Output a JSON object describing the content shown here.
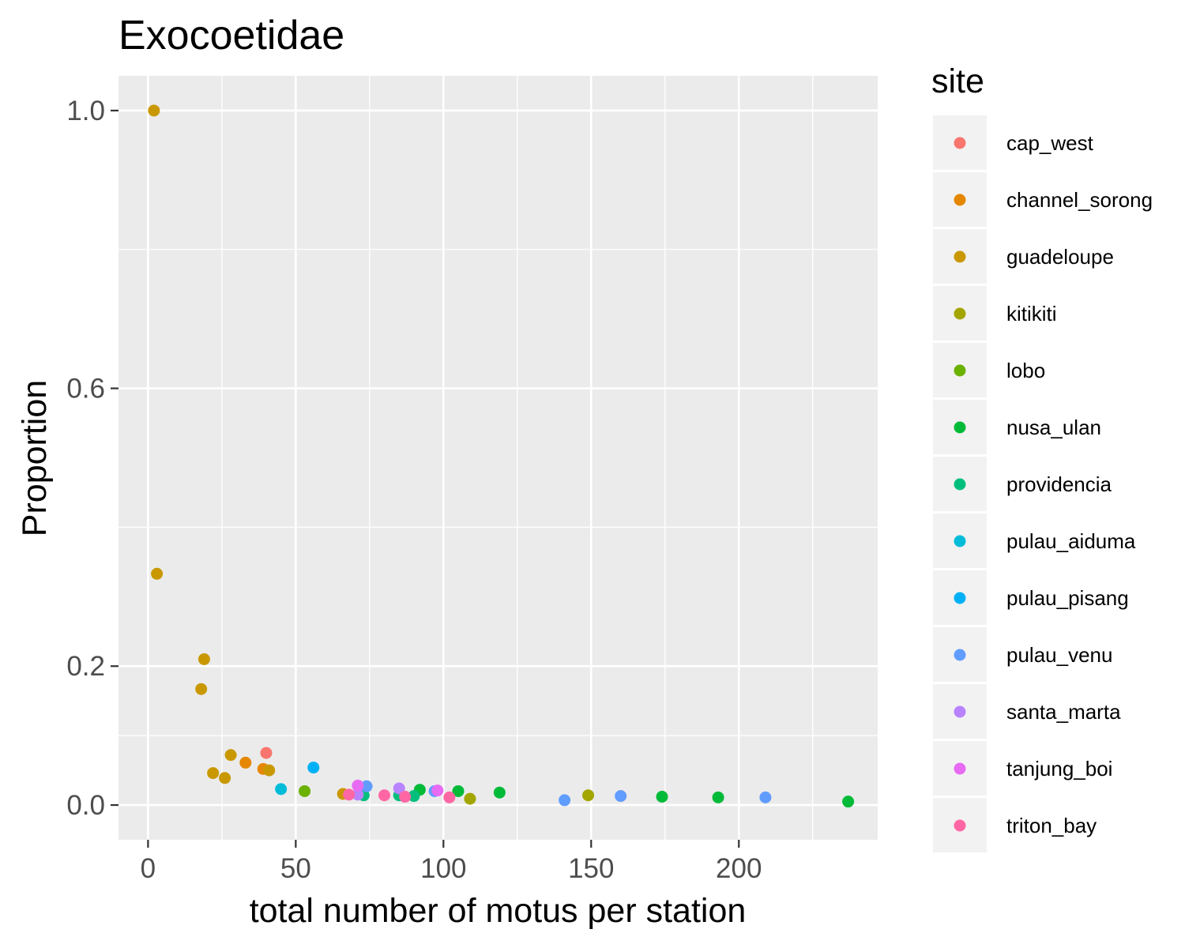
{
  "chart_data": {
    "type": "scatter",
    "title": "Exocoetidae",
    "xlabel": "total number of motus per station",
    "ylabel": "Proportion",
    "xlim": [
      -10,
      247
    ],
    "ylim": [
      -0.05,
      1.05
    ],
    "x_ticks": [
      0,
      50,
      100,
      150,
      200
    ],
    "x_tick_labels": [
      "0",
      "50",
      "100",
      "150",
      "200"
    ],
    "y_ticks": [
      0.0,
      0.2,
      0.6,
      1.0
    ],
    "y_tick_labels": [
      "0.0",
      "0.2",
      "0.6",
      "1.0"
    ],
    "y_minor_ticks": [
      0.1,
      0.4,
      0.8
    ],
    "x_minor_ticks": [
      25,
      75,
      125,
      175,
      225
    ],
    "grid": true,
    "legend_title": "site",
    "legend_position": "right",
    "series": [
      {
        "name": "cap_west",
        "color": "#F8766D",
        "points": [
          [
            40,
            0.075
          ]
        ]
      },
      {
        "name": "channel_sorong",
        "color": "#E58700",
        "points": [
          [
            33,
            0.061
          ],
          [
            39,
            0.052
          ]
        ]
      },
      {
        "name": "guadeloupe",
        "color": "#C99800",
        "points": [
          [
            2,
            1.0
          ],
          [
            3,
            0.333
          ],
          [
            19,
            0.21
          ],
          [
            18,
            0.167
          ],
          [
            28,
            0.072
          ],
          [
            22,
            0.046
          ],
          [
            26,
            0.039
          ],
          [
            41,
            0.05
          ],
          [
            66,
            0.016
          ]
        ]
      },
      {
        "name": "kitikiti",
        "color": "#A3A500",
        "points": [
          [
            109,
            0.009
          ],
          [
            149,
            0.014
          ]
        ]
      },
      {
        "name": "lobo",
        "color": "#6BB100",
        "points": [
          [
            53,
            0.02
          ]
        ]
      },
      {
        "name": "nusa_ulan",
        "color": "#00BA38",
        "points": [
          [
            92,
            0.022
          ],
          [
            105,
            0.02
          ],
          [
            119,
            0.018
          ],
          [
            174,
            0.012
          ],
          [
            193,
            0.011
          ],
          [
            237,
            0.005
          ]
        ]
      },
      {
        "name": "providencia",
        "color": "#00BF7D",
        "points": [
          [
            73,
            0.014
          ],
          [
            85,
            0.014
          ],
          [
            90,
            0.013
          ]
        ]
      },
      {
        "name": "pulau_aiduma",
        "color": "#00BCD8",
        "points": [
          [
            45,
            0.023
          ]
        ]
      },
      {
        "name": "pulau_pisang",
        "color": "#00B0F6",
        "points": [
          [
            56,
            0.054
          ]
        ]
      },
      {
        "name": "pulau_venu",
        "color": "#619CFF",
        "points": [
          [
            74,
            0.027
          ],
          [
            97,
            0.02
          ],
          [
            141,
            0.007
          ],
          [
            160,
            0.013
          ],
          [
            209,
            0.011
          ]
        ]
      },
      {
        "name": "santa_marta",
        "color": "#B983FF",
        "points": [
          [
            71,
            0.015
          ],
          [
            85,
            0.024
          ]
        ]
      },
      {
        "name": "tanjung_boi",
        "color": "#E76BF3",
        "points": [
          [
            71,
            0.028
          ],
          [
            98,
            0.021
          ]
        ]
      },
      {
        "name": "triton_bay",
        "color": "#FF67A4",
        "points": [
          [
            68,
            0.015
          ],
          [
            80,
            0.014
          ],
          [
            87,
            0.012
          ],
          [
            102,
            0.011
          ]
        ]
      }
    ]
  }
}
